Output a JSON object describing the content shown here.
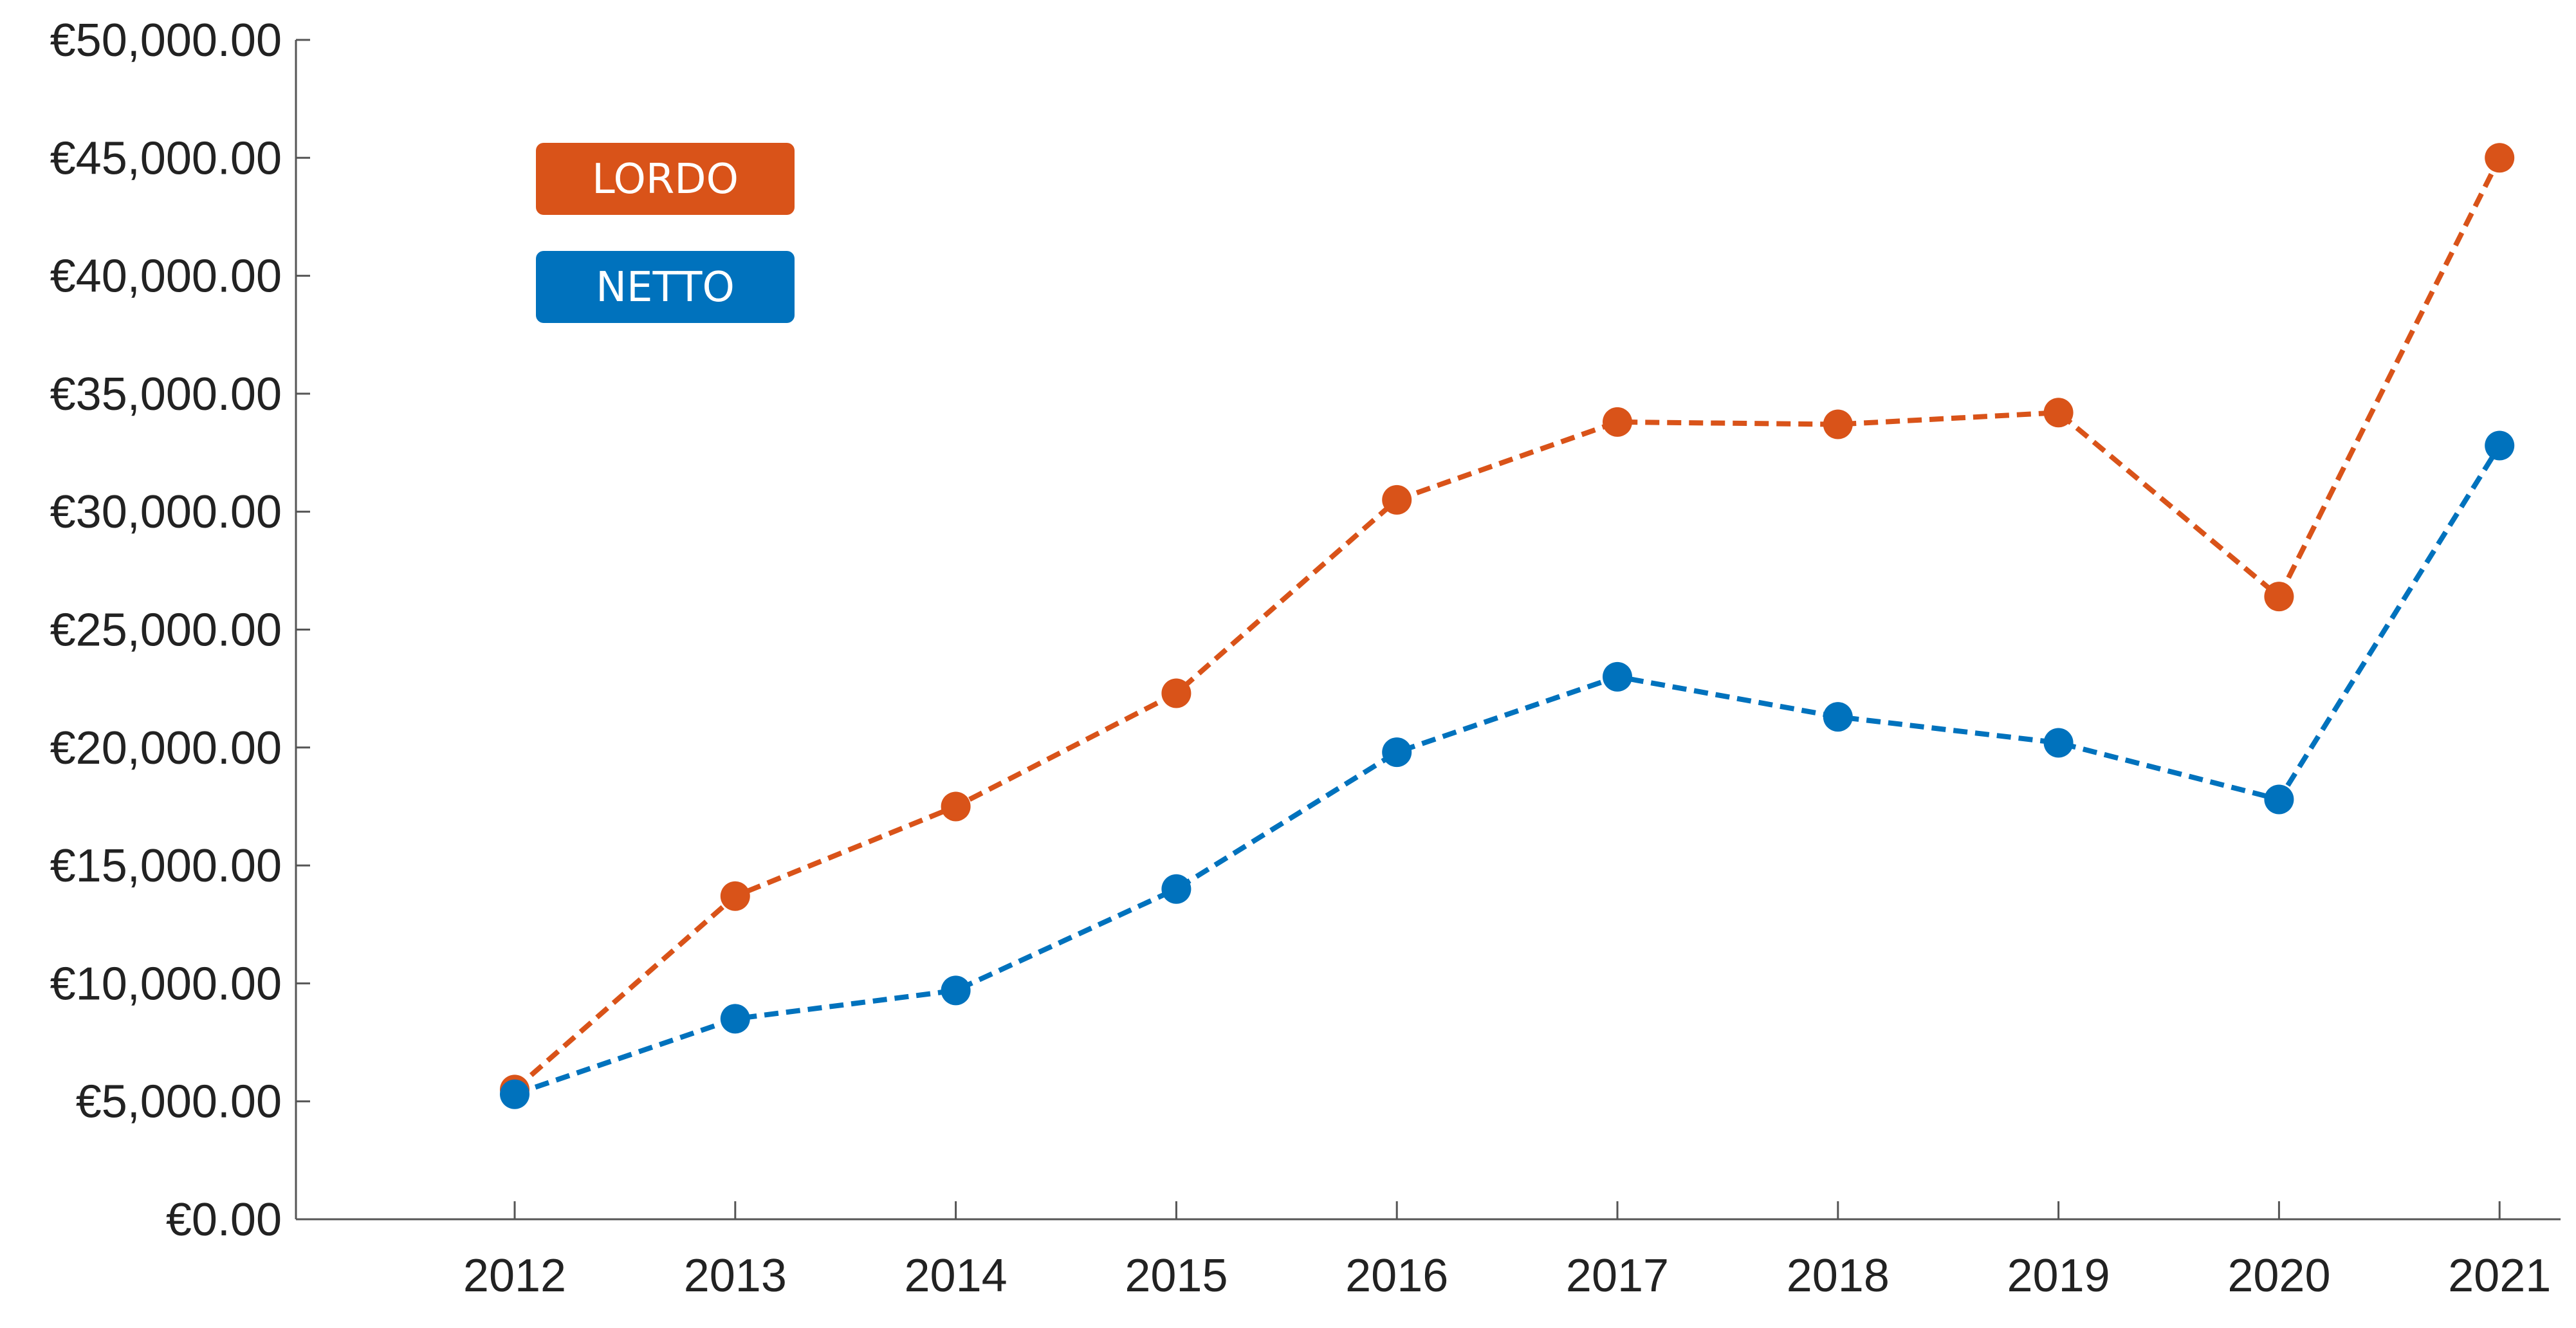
{
  "chart_data": {
    "type": "line",
    "categories": [
      "2012",
      "2013",
      "2014",
      "2015",
      "2016",
      "2017",
      "2018",
      "2019",
      "2020",
      "2021"
    ],
    "y_ticks": [
      "€0.00",
      "€5,000.00",
      "€10,000.00",
      "€15,000.00",
      "€20,000.00",
      "€25,000.00",
      "€30,000.00",
      "€35,000.00",
      "€40,000.00",
      "€45,000.00",
      "€50,000.00"
    ],
    "ylim": [
      0,
      50000
    ],
    "grid": false,
    "legend_position": "top-left",
    "series": [
      {
        "name": "LORDO",
        "color": "#D95319",
        "values": [
          5500,
          13700,
          17500,
          22300,
          30500,
          33800,
          33700,
          34200,
          26400,
          45000
        ]
      },
      {
        "name": "NETTO",
        "color": "#0072BD",
        "values": [
          5300,
          8500,
          9700,
          14000,
          19800,
          23000,
          21300,
          20200,
          17800,
          32800
        ]
      }
    ]
  }
}
